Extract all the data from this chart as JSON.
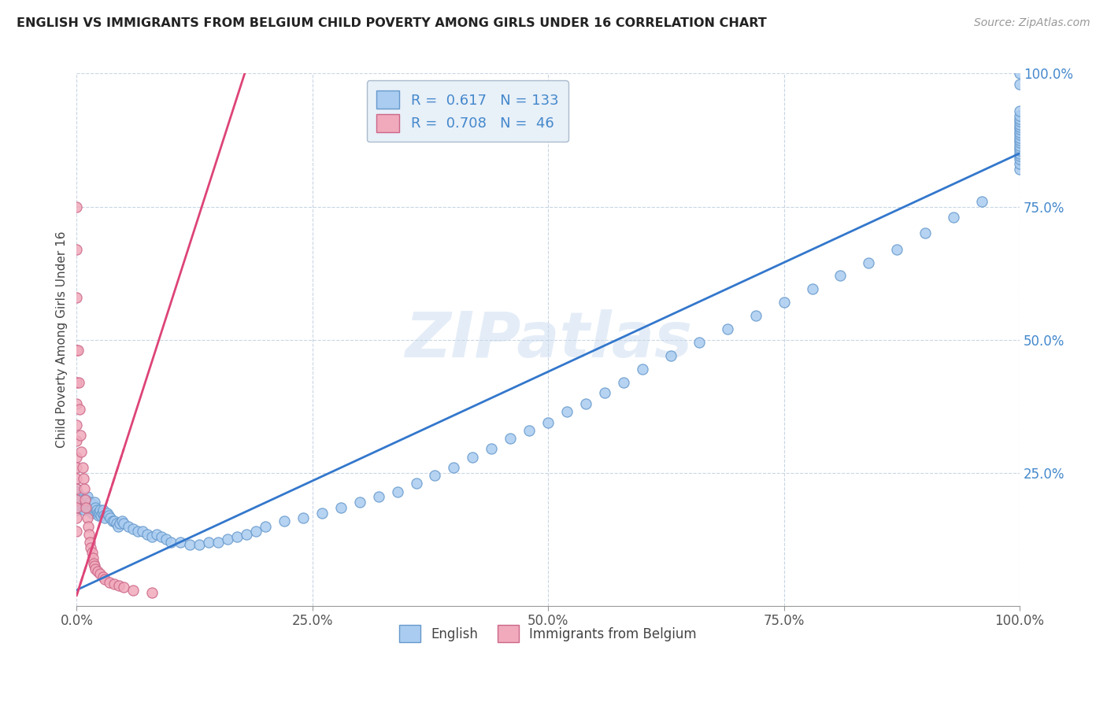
{
  "title": "ENGLISH VS IMMIGRANTS FROM BELGIUM CHILD POVERTY AMONG GIRLS UNDER 16 CORRELATION CHART",
  "source": "Source: ZipAtlas.com",
  "ylabel": "Child Poverty Among Girls Under 16",
  "xlim": [
    0,
    1.0
  ],
  "ylim": [
    0,
    1.0
  ],
  "xtick_labels": [
    "0.0%",
    "25.0%",
    "50.0%",
    "75.0%",
    "100.0%"
  ],
  "xtick_values": [
    0.0,
    0.25,
    0.5,
    0.75,
    1.0
  ],
  "ytick_labels": [
    "25.0%",
    "50.0%",
    "75.0%",
    "100.0%"
  ],
  "ytick_values": [
    0.25,
    0.5,
    0.75,
    1.0
  ],
  "legend_labels": [
    "English",
    "Immigrants from Belgium"
  ],
  "english_color": "#aaccf0",
  "english_edge": "#6699cc",
  "belgium_color": "#f0aabb",
  "belgium_edge": "#cc6688",
  "english_line_color": "#3377cc",
  "belgium_line_color": "#dd4477",
  "R_english": 0.617,
  "N_english": 133,
  "R_belgium": 0.708,
  "N_belgium": 46,
  "watermark": "ZIPatlas",
  "legend_box_color": "#e8f0f8",
  "legend_box_edge": "#aabbcc",
  "english_x": [
    0.0,
    0.0,
    0.0,
    0.0,
    0.0,
    0.0,
    0.0,
    0.0,
    0.0,
    0.0,
    0.0,
    0.0,
    0.0,
    0.0,
    0.0,
    0.0,
    0.0,
    0.0,
    0.0,
    0.0,
    0.002,
    0.003,
    0.004,
    0.005,
    0.006,
    0.007,
    0.008,
    0.009,
    0.01,
    0.011,
    0.012,
    0.013,
    0.014,
    0.015,
    0.016,
    0.017,
    0.018,
    0.019,
    0.02,
    0.021,
    0.022,
    0.023,
    0.024,
    0.025,
    0.026,
    0.027,
    0.028,
    0.029,
    0.03,
    0.032,
    0.034,
    0.036,
    0.038,
    0.04,
    0.042,
    0.044,
    0.046,
    0.048,
    0.05,
    0.055,
    0.06,
    0.065,
    0.07,
    0.075,
    0.08,
    0.085,
    0.09,
    0.095,
    0.1,
    0.11,
    0.12,
    0.13,
    0.14,
    0.15,
    0.16,
    0.17,
    0.18,
    0.19,
    0.2,
    0.22,
    0.24,
    0.26,
    0.28,
    0.3,
    0.32,
    0.34,
    0.36,
    0.38,
    0.4,
    0.42,
    0.44,
    0.46,
    0.48,
    0.5,
    0.52,
    0.54,
    0.56,
    0.58,
    0.6,
    0.63,
    0.66,
    0.69,
    0.72,
    0.75,
    0.78,
    0.81,
    0.84,
    0.87,
    0.9,
    0.93,
    0.96,
    1.0,
    1.0,
    1.0,
    1.0,
    1.0,
    1.0,
    1.0,
    1.0,
    1.0,
    1.0,
    1.0,
    1.0,
    1.0,
    1.0,
    1.0,
    1.0,
    1.0,
    1.0,
    1.0,
    1.0,
    1.0,
    1.0
  ],
  "english_y": [
    0.2,
    0.21,
    0.18,
    0.22,
    0.195,
    0.205,
    0.215,
    0.19,
    0.2,
    0.21,
    0.185,
    0.195,
    0.205,
    0.215,
    0.2,
    0.19,
    0.21,
    0.195,
    0.205,
    0.215,
    0.21,
    0.205,
    0.2,
    0.195,
    0.19,
    0.185,
    0.18,
    0.195,
    0.2,
    0.205,
    0.185,
    0.19,
    0.195,
    0.18,
    0.175,
    0.185,
    0.19,
    0.195,
    0.185,
    0.18,
    0.175,
    0.17,
    0.175,
    0.18,
    0.17,
    0.175,
    0.18,
    0.17,
    0.165,
    0.175,
    0.17,
    0.165,
    0.16,
    0.16,
    0.155,
    0.15,
    0.155,
    0.16,
    0.155,
    0.15,
    0.145,
    0.14,
    0.14,
    0.135,
    0.13,
    0.135,
    0.13,
    0.125,
    0.12,
    0.12,
    0.115,
    0.115,
    0.12,
    0.12,
    0.125,
    0.13,
    0.135,
    0.14,
    0.15,
    0.16,
    0.165,
    0.175,
    0.185,
    0.195,
    0.205,
    0.215,
    0.23,
    0.245,
    0.26,
    0.28,
    0.295,
    0.315,
    0.33,
    0.345,
    0.365,
    0.38,
    0.4,
    0.42,
    0.445,
    0.47,
    0.495,
    0.52,
    0.545,
    0.57,
    0.595,
    0.62,
    0.645,
    0.67,
    0.7,
    0.73,
    0.76,
    0.82,
    0.83,
    0.84,
    0.845,
    0.85,
    0.855,
    0.86,
    0.865,
    0.87,
    0.875,
    0.88,
    0.885,
    0.89,
    0.895,
    0.9,
    0.905,
    0.91,
    0.915,
    0.92,
    0.93,
    0.98,
    1.0
  ],
  "belgium_x": [
    0.0,
    0.0,
    0.0,
    0.0,
    0.0,
    0.0,
    0.0,
    0.0,
    0.0,
    0.0,
    0.0,
    0.0,
    0.0,
    0.0,
    0.0,
    0.0,
    0.001,
    0.002,
    0.003,
    0.004,
    0.005,
    0.006,
    0.007,
    0.008,
    0.009,
    0.01,
    0.011,
    0.012,
    0.013,
    0.014,
    0.015,
    0.016,
    0.017,
    0.018,
    0.019,
    0.02,
    0.022,
    0.025,
    0.028,
    0.03,
    0.035,
    0.04,
    0.045,
    0.05,
    0.06,
    0.08
  ],
  "belgium_y": [
    0.75,
    0.67,
    0.58,
    0.48,
    0.42,
    0.38,
    0.34,
    0.31,
    0.28,
    0.26,
    0.24,
    0.22,
    0.2,
    0.185,
    0.165,
    0.14,
    0.48,
    0.42,
    0.37,
    0.32,
    0.29,
    0.26,
    0.24,
    0.22,
    0.2,
    0.185,
    0.165,
    0.15,
    0.135,
    0.12,
    0.11,
    0.1,
    0.09,
    0.08,
    0.075,
    0.07,
    0.065,
    0.06,
    0.055,
    0.05,
    0.045,
    0.042,
    0.038,
    0.035,
    0.03,
    0.025
  ]
}
